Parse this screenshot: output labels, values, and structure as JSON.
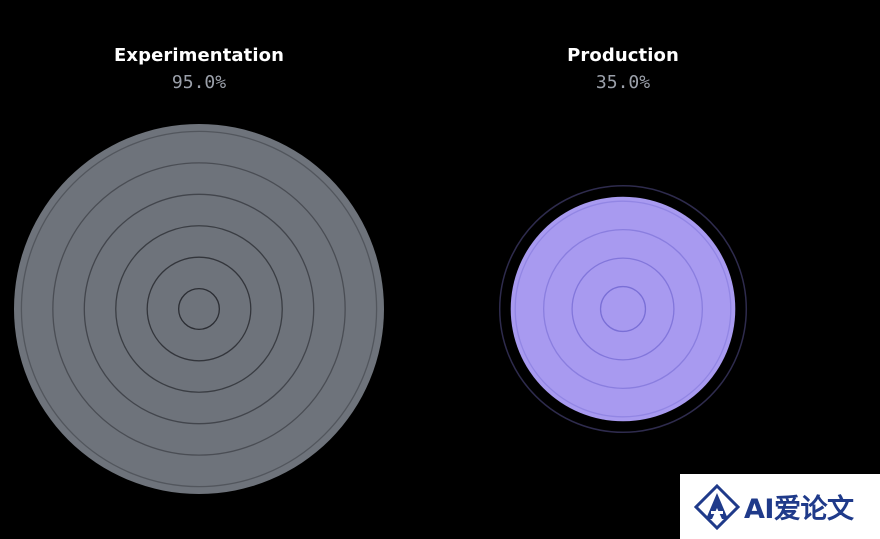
{
  "chart_data": {
    "type": "concentric-circle",
    "items": [
      {
        "title": "Experimentation",
        "value_label": "95.0%",
        "value": 95.0,
        "fill": "#6e737b",
        "ring": "#2b2d33",
        "rings": 6
      },
      {
        "title": "Production",
        "value_label": "35.0%",
        "value": 35.0,
        "fill": "#a89af0",
        "ring": "#7a6fd6",
        "rings": 4,
        "outer_ring": "#2e2b4d"
      }
    ]
  },
  "watermark": {
    "text": "AI爱论文",
    "logo": "a-logo-icon"
  }
}
